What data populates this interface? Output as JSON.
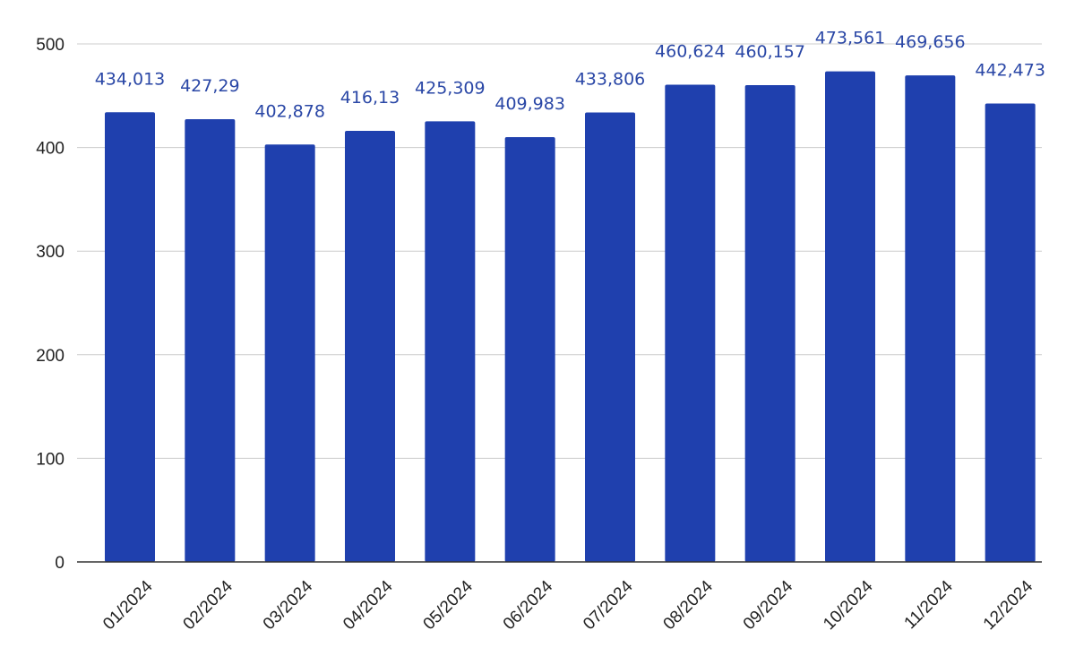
{
  "chart_data": {
    "type": "bar",
    "title": "",
    "xlabel": "",
    "ylabel": "",
    "ylim": [
      0,
      500
    ],
    "yticks": [
      0,
      100,
      200,
      300,
      400,
      500
    ],
    "grid": true,
    "legend": "none",
    "bar_color": "#1f40ae",
    "label_color": "#2a47a6",
    "categories": [
      "01/2024",
      "02/2024",
      "03/2024",
      "04/2024",
      "05/2024",
      "06/2024",
      "07/2024",
      "08/2024",
      "09/2024",
      "10/2024",
      "11/2024",
      "12/2024"
    ],
    "values": [
      434.013,
      427.29,
      402.878,
      416.13,
      425.309,
      409.983,
      433.806,
      460.624,
      460.157,
      473.561,
      469.656,
      442.473
    ],
    "labels": [
      "434,013",
      "427,29",
      "402,878",
      "416,13",
      "425,309",
      "409,983",
      "433,806",
      "460,624",
      "460,157",
      "473,561",
      "469,656",
      "442,473"
    ]
  }
}
